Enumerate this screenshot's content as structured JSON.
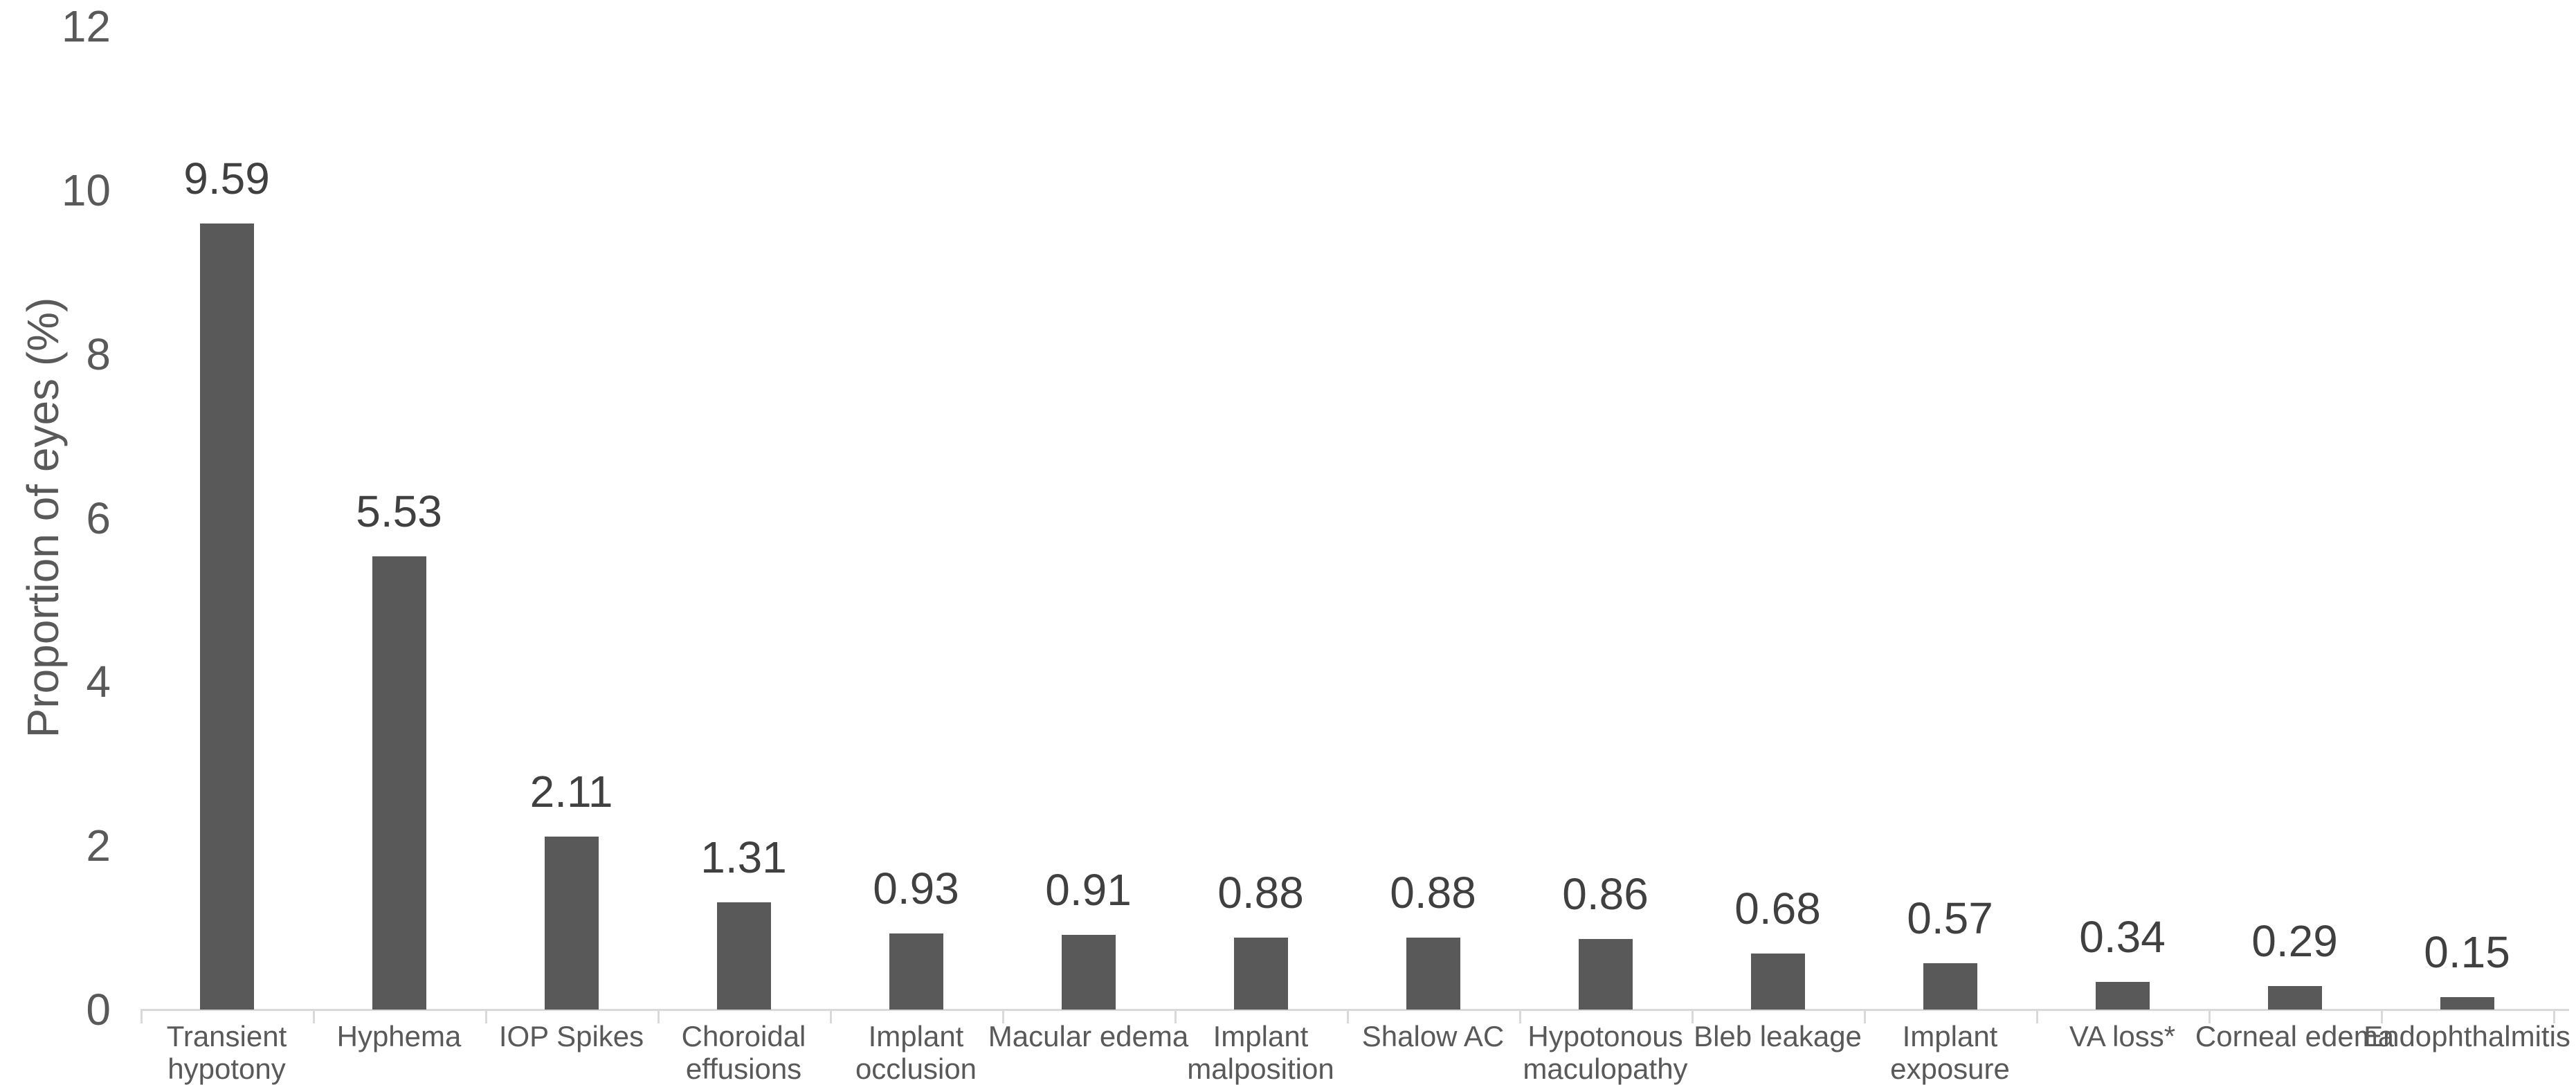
{
  "chart_data": {
    "type": "bar",
    "title": "",
    "ylabel": "Proportion of eyes (%)",
    "xlabel": "",
    "ylim": [
      0,
      12
    ],
    "yticks": [
      0,
      2,
      4,
      6,
      8,
      10,
      12
    ],
    "ytick_labels": [
      "0",
      "2",
      "4",
      "6",
      "8",
      "10",
      "12"
    ],
    "grid": false,
    "legend_position": "none",
    "categories": [
      "Transient\nhypotony",
      "Hyphema",
      "IOP Spikes",
      "Choroidal\neffusions",
      "Implant\nocclusion",
      "Macular edema",
      "Implant\nmalposition",
      "Shalow AC",
      "Hypotonous\nmaculopathy",
      "Bleb leakage",
      "Implant\nexposure",
      "VA loss*",
      "Corneal edema",
      "Endophthalmitis"
    ],
    "values": [
      9.59,
      5.53,
      2.11,
      1.31,
      0.93,
      0.91,
      0.88,
      0.88,
      0.86,
      0.68,
      0.57,
      0.34,
      0.29,
      0.15
    ],
    "value_labels": [
      "9.59",
      "5.53",
      "2.11",
      "1.31",
      "0.93",
      "0.91",
      "0.88",
      "0.88",
      "0.86",
      "0.68",
      "0.57",
      "0.34",
      "0.29",
      "0.15"
    ],
    "colors": {
      "bar": "#595959",
      "value_label": "#404040",
      "axis_text": "#595959",
      "axis_line": "#d9d9d9",
      "background": "#ffffff"
    }
  }
}
